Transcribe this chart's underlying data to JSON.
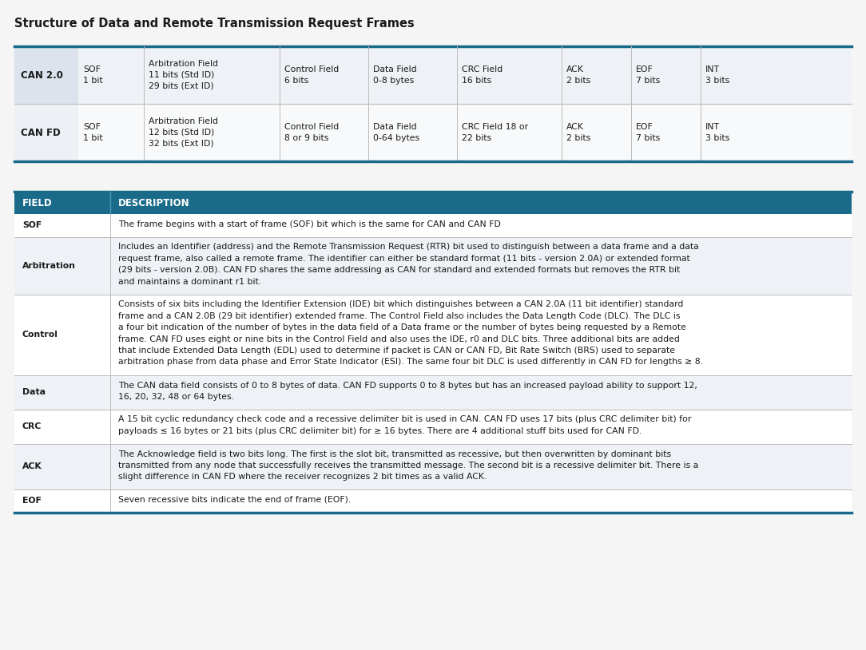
{
  "title": "Structure of Data and Remote Transmission Request Frames",
  "title_fontsize": 10.5,
  "title_color": "#1a1a1a",
  "background_color": "#f5f5f5",
  "teal_color": "#1a6b8a",
  "teal_light": "#2c7a9a",
  "top_table": {
    "row_bg1": "#eef1f5",
    "row_bg2": "#f8f9fa",
    "label_bg1": "#dce3ec",
    "label_bg2": "#edf0f5",
    "border_color": "#1a6b8a",
    "separator_color": "#bbbbbb",
    "text_color": "#1a1a1a",
    "rows": [
      {
        "label": "CAN 2.0",
        "cols": [
          "SOF\n1 bit",
          "Arbitration Field\n11 bits (Std ID)\n29 bits (Ext ID)",
          "Control Field\n6 bits",
          "Data Field\n0-8 bytes",
          "CRC Field\n16 bits",
          "ACK\n2 bits",
          "EOF\n7 bits",
          "INT\n3 bits"
        ]
      },
      {
        "label": "CAN FD",
        "cols": [
          "SOF\n1 bit",
          "Arbitration Field\n12 bits (Std ID)\n32 bits (Ext ID)",
          "Control Field\n8 or 9 bits",
          "Data Field\n0-64 bytes",
          "CRC Field 18 or\n22 bits",
          "ACK\n2 bits",
          "EOF\n7 bits",
          "INT\n3 bits"
        ]
      }
    ]
  },
  "bottom_table": {
    "header_bg": "#1a6b8a",
    "header_text_color": "#ffffff",
    "row_bg_odd": "#ffffff",
    "row_bg_even": "#eef1f5",
    "border_color": "#1a6b8a",
    "sep_color": "#bbbbbb",
    "text_color": "#1a1a1a",
    "headers": [
      "FIELD",
      "DESCRIPTION"
    ],
    "rows": [
      {
        "field": "SOF",
        "desc": "The frame begins with a start of frame (SOF) bit which is the same for CAN and CAN FD"
      },
      {
        "field": "Arbitration",
        "desc": "Includes an Identifier (address) and the Remote Transmission Request (RTR) bit used to distinguish between a data frame and a data\nrequest frame, also called a remote frame. The identifier can either be standard format (11 bits - version 2.0A) or extended format\n(29 bits - version 2.0B). CAN FD shares the same addressing as CAN for standard and extended formats but removes the RTR bit\nand maintains a dominant r1 bit."
      },
      {
        "field": "Control",
        "desc": "Consists of six bits including the Identifier Extension (IDE) bit which distinguishes between a CAN 2.0A (11 bit identifier) standard\nframe and a CAN 2.0B (29 bit identifier) extended frame. The Control Field also includes the Data Length Code (DLC). The DLC is\na four bit indication of the number of bytes in the data field of a Data frame or the number of bytes being requested by a Remote\nframe. CAN FD uses eight or nine bits in the Control Field and also uses the IDE, r0 and DLC bits. Three additional bits are added\nthat include Extended Data Length (EDL) used to determine if packet is CAN or CAN FD, Bit Rate Switch (BRS) used to separate\narbitration phase from data phase and Error State Indicator (ESI). The same four bit DLC is used differently in CAN FD for lengths ≥ 8."
      },
      {
        "field": "Data",
        "desc": "The CAN data field consists of 0 to 8 bytes of data. CAN FD supports 0 to 8 bytes but has an increased payload ability to support 12,\n16, 20, 32, 48 or 64 bytes."
      },
      {
        "field": "CRC",
        "desc": "A 15 bit cyclic redundancy check code and a recessive delimiter bit is used in CAN. CAN FD uses 17 bits (plus CRC delimiter bit) for\npayloads ≤ 16 bytes or 21 bits (plus CRC delimiter bit) for ≥ 16 bytes. There are 4 additional stuff bits used for CAN FD."
      },
      {
        "field": "ACK",
        "desc": "The Acknowledge field is two bits long. The first is the slot bit, transmitted as recessive, but then overwritten by dominant bits\ntransmitted from any node that successfully receives the transmitted message. The second bit is a recessive delimiter bit. There is a\nslight difference in CAN FD where the receiver recognizes 2 bit times as a valid ACK."
      },
      {
        "field": "EOF",
        "desc": "Seven recessive bits indicate the end of frame (EOF)."
      }
    ]
  }
}
